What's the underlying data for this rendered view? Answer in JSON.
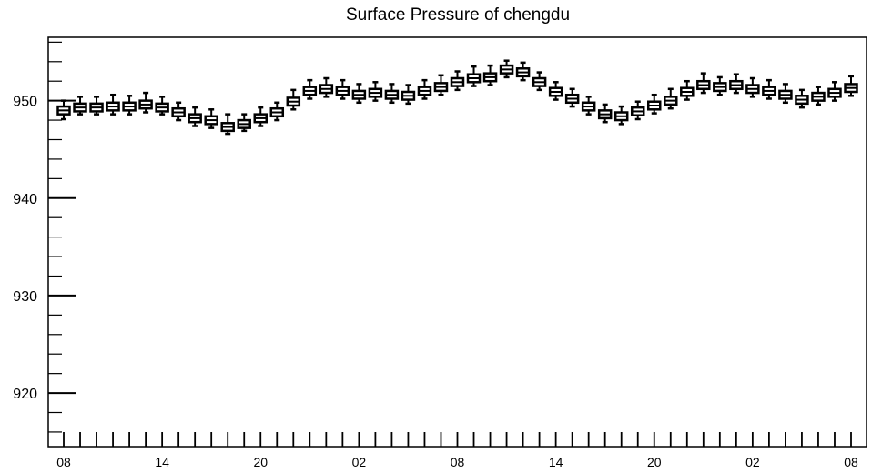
{
  "chart_data": {
    "type": "boxplot",
    "title": "Surface Pressure of chengdu",
    "xlabel": "",
    "ylabel": "",
    "ylim": [
      914.5,
      956.5
    ],
    "yticks": [
      920,
      930,
      940,
      950
    ],
    "xticks": [
      {
        "index": 0,
        "label": "08"
      },
      {
        "index": 6,
        "label": "14"
      },
      {
        "index": 12,
        "label": "20"
      },
      {
        "index": 18,
        "label": "02"
      },
      {
        "index": 24,
        "label": "08"
      },
      {
        "index": 30,
        "label": "14"
      },
      {
        "index": 36,
        "label": "20"
      },
      {
        "index": 42,
        "label": "02"
      },
      {
        "index": 48,
        "label": "08"
      }
    ],
    "grid": false,
    "series": [
      {
        "median": [
          949.0,
          949.3,
          949.3,
          949.4,
          949.4,
          949.6,
          949.3,
          948.8,
          948.2,
          948.0,
          947.3,
          947.6,
          948.2,
          948.8,
          949.9,
          951.0,
          951.2,
          951.0,
          950.6,
          950.8,
          950.6,
          950.5,
          951.0,
          951.4,
          951.9,
          952.3,
          952.4,
          953.2,
          952.9,
          951.9,
          950.9,
          950.2,
          949.4,
          948.6,
          948.4,
          948.9,
          949.5,
          950.0,
          950.9,
          951.6,
          951.4,
          951.6,
          951.2,
          951.0,
          950.6,
          950.1,
          950.4,
          950.8,
          951.3
        ],
        "box_low": [
          948.6,
          948.9,
          948.9,
          949.0,
          949.0,
          949.2,
          948.9,
          948.4,
          947.8,
          947.6,
          946.9,
          947.2,
          947.8,
          948.4,
          949.5,
          950.6,
          950.8,
          950.6,
          950.2,
          950.4,
          950.2,
          950.1,
          950.6,
          951.0,
          951.5,
          951.9,
          952.0,
          952.8,
          952.5,
          951.5,
          950.5,
          949.8,
          949.0,
          948.2,
          948.0,
          948.5,
          949.1,
          949.6,
          950.5,
          951.2,
          951.0,
          951.2,
          950.8,
          950.6,
          950.2,
          949.7,
          950.0,
          950.4,
          950.9
        ],
        "box_high": [
          949.4,
          949.7,
          949.7,
          949.8,
          949.8,
          950.0,
          949.7,
          949.2,
          948.6,
          948.4,
          947.7,
          948.0,
          948.6,
          949.2,
          950.3,
          951.4,
          951.6,
          951.4,
          951.0,
          951.2,
          951.0,
          950.9,
          951.4,
          951.8,
          952.3,
          952.7,
          952.8,
          953.6,
          953.3,
          952.3,
          951.3,
          950.6,
          949.8,
          949.0,
          948.8,
          949.3,
          949.9,
          950.4,
          951.3,
          952.0,
          951.8,
          952.0,
          951.6,
          951.4,
          951.0,
          950.5,
          950.8,
          951.2,
          951.7
        ],
        "whisker_low": [
          948.1,
          948.6,
          948.6,
          948.6,
          948.6,
          948.8,
          948.6,
          948.0,
          947.4,
          947.2,
          946.6,
          946.9,
          947.4,
          948.0,
          949.1,
          950.2,
          950.4,
          950.2,
          949.8,
          950.0,
          949.8,
          949.7,
          950.2,
          950.6,
          951.1,
          951.5,
          951.6,
          952.4,
          952.1,
          951.1,
          950.1,
          949.4,
          948.6,
          947.8,
          947.6,
          948.1,
          948.7,
          949.2,
          950.1,
          950.8,
          950.6,
          950.8,
          950.4,
          950.2,
          949.8,
          949.3,
          949.6,
          950.0,
          950.5
        ],
        "whisker_high": [
          950.0,
          950.4,
          950.4,
          950.6,
          950.5,
          950.8,
          950.4,
          949.8,
          949.3,
          949.1,
          948.6,
          948.6,
          949.3,
          949.8,
          951.1,
          952.1,
          952.3,
          952.1,
          951.7,
          951.9,
          951.7,
          951.6,
          952.1,
          952.6,
          953.0,
          953.5,
          953.6,
          954.1,
          953.9,
          952.9,
          951.9,
          951.2,
          950.4,
          949.6,
          949.4,
          949.9,
          950.6,
          951.2,
          952.0,
          952.8,
          952.4,
          952.7,
          952.3,
          952.1,
          951.7,
          951.1,
          951.4,
          951.9,
          952.5
        ]
      }
    ]
  }
}
